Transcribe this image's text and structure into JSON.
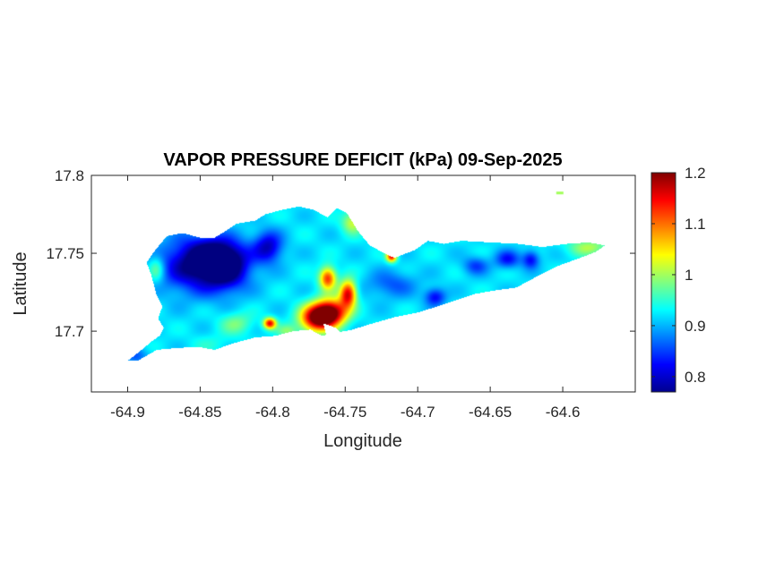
{
  "title": "VAPOR PRESSURE DEFICIT (kPa) 09-Sep-2025",
  "x_axis": {
    "label": "Longitude",
    "range": [
      -64.925,
      -64.55
    ],
    "ticks": [
      {
        "value": -64.9,
        "label": "-64.9"
      },
      {
        "value": -64.85,
        "label": "-64.85"
      },
      {
        "value": -64.8,
        "label": "-64.8"
      },
      {
        "value": -64.75,
        "label": "-64.75"
      },
      {
        "value": -64.7,
        "label": "-64.7"
      },
      {
        "value": -64.65,
        "label": "-64.65"
      },
      {
        "value": -64.6,
        "label": "-64.6"
      }
    ]
  },
  "y_axis": {
    "label": "Latitude",
    "range": [
      17.661,
      17.8
    ],
    "ticks": [
      {
        "value": 17.8,
        "label": "17.8"
      },
      {
        "value": 17.75,
        "label": "17.75"
      },
      {
        "value": 17.7,
        "label": "17.7"
      }
    ]
  },
  "colorbar": {
    "colormap": "jet",
    "range": [
      0.77,
      1.2
    ],
    "ticks": [
      {
        "value": 1.2,
        "label": "1.2"
      },
      {
        "value": 1.1,
        "label": "1.1"
      },
      {
        "value": 1.0,
        "label": "1"
      },
      {
        "value": 0.9,
        "label": "0.9"
      },
      {
        "value": 0.8,
        "label": "0.8"
      }
    ]
  },
  "chart_data": {
    "type": "heatmap",
    "value_range": [
      0.77,
      1.2
    ],
    "land_outline_lonlat": [
      [
        -64.9,
        17.681
      ],
      [
        -64.893,
        17.686
      ],
      [
        -64.884,
        17.693
      ],
      [
        -64.878,
        17.697
      ],
      [
        -64.875,
        17.702
      ],
      [
        -64.879,
        17.708
      ],
      [
        -64.876,
        17.716
      ],
      [
        -64.88,
        17.723
      ],
      [
        -64.884,
        17.737
      ],
      [
        -64.887,
        17.744
      ],
      [
        -64.881,
        17.752
      ],
      [
        -64.873,
        17.761
      ],
      [
        -64.862,
        17.763
      ],
      [
        -64.85,
        17.76
      ],
      [
        -64.84,
        17.76
      ],
      [
        -64.833,
        17.764
      ],
      [
        -64.825,
        17.769
      ],
      [
        -64.812,
        17.771
      ],
      [
        -64.805,
        17.775
      ],
      [
        -64.793,
        17.778
      ],
      [
        -64.782,
        17.78
      ],
      [
        -64.772,
        17.778
      ],
      [
        -64.762,
        17.773
      ],
      [
        -64.756,
        17.779
      ],
      [
        -64.749,
        17.776
      ],
      [
        -64.741,
        17.764
      ],
      [
        -64.733,
        17.755
      ],
      [
        -64.723,
        17.75
      ],
      [
        -64.716,
        17.747
      ],
      [
        -64.708,
        17.75
      ],
      [
        -64.702,
        17.752
      ],
      [
        -64.693,
        17.758
      ],
      [
        -64.682,
        17.756
      ],
      [
        -64.67,
        17.758
      ],
      [
        -64.65,
        17.757
      ],
      [
        -64.63,
        17.756
      ],
      [
        -64.614,
        17.754
      ],
      [
        -64.598,
        17.756
      ],
      [
        -64.582,
        17.757
      ],
      [
        -64.571,
        17.755
      ],
      [
        -64.577,
        17.751
      ],
      [
        -64.588,
        17.747
      ],
      [
        -64.603,
        17.742
      ],
      [
        -64.618,
        17.735
      ],
      [
        -64.632,
        17.728
      ],
      [
        -64.648,
        17.726
      ],
      [
        -64.66,
        17.724
      ],
      [
        -64.673,
        17.72
      ],
      [
        -64.686,
        17.716
      ],
      [
        -64.7,
        17.712
      ],
      [
        -64.716,
        17.709
      ],
      [
        -64.731,
        17.705
      ],
      [
        -64.745,
        17.701
      ],
      [
        -64.756,
        17.699
      ],
      [
        -64.766,
        17.697
      ],
      [
        -64.774,
        17.701
      ],
      [
        -64.786,
        17.7
      ],
      [
        -64.798,
        17.697
      ],
      [
        -64.812,
        17.696
      ],
      [
        -64.828,
        17.692
      ],
      [
        -64.84,
        17.688
      ],
      [
        -64.852,
        17.69
      ],
      [
        -64.868,
        17.689
      ],
      [
        -64.88,
        17.688
      ],
      [
        -64.893,
        17.681
      ]
    ],
    "hole_lonlat": [
      [
        -64.765,
        17.705
      ],
      [
        -64.756,
        17.702
      ],
      [
        -64.752,
        17.698
      ],
      [
        -64.758,
        17.694
      ],
      [
        -64.763,
        17.697
      ]
    ],
    "islet_lonlat": [
      -64.602,
      17.789
    ],
    "hotspots": [
      {
        "lon": -64.85,
        "lat": 17.742,
        "value": 0.77,
        "sx": 0.02,
        "sy": 0.012
      },
      {
        "lon": -64.838,
        "lat": 17.748,
        "value": 0.8,
        "sx": 0.013,
        "sy": 0.008
      },
      {
        "lon": -64.803,
        "lat": 17.754,
        "value": 0.8,
        "sx": 0.007,
        "sy": 0.007
      },
      {
        "lon": -64.832,
        "lat": 17.738,
        "value": 0.84,
        "sx": 0.01,
        "sy": 0.009
      },
      {
        "lon": -64.76,
        "lat": 17.712,
        "value": 1.2,
        "sx": 0.008,
        "sy": 0.006
      },
      {
        "lon": -64.77,
        "lat": 17.708,
        "value": 1.17,
        "sx": 0.008,
        "sy": 0.006
      },
      {
        "lon": -64.762,
        "lat": 17.734,
        "value": 1.13,
        "sx": 0.004,
        "sy": 0.005
      },
      {
        "lon": -64.748,
        "lat": 17.724,
        "value": 1.16,
        "sx": 0.004,
        "sy": 0.006
      },
      {
        "lon": -64.802,
        "lat": 17.705,
        "value": 1.15,
        "sx": 0.003,
        "sy": 0.0025
      },
      {
        "lon": -64.718,
        "lat": 17.748,
        "value": 1.15,
        "sx": 0.0025,
        "sy": 0.0025
      },
      {
        "lon": -64.688,
        "lat": 17.722,
        "value": 0.82,
        "sx": 0.005,
        "sy": 0.004
      },
      {
        "lon": -64.638,
        "lat": 17.746,
        "value": 0.83,
        "sx": 0.006,
        "sy": 0.004
      },
      {
        "lon": -64.622,
        "lat": 17.746,
        "value": 0.82,
        "sx": 0.004,
        "sy": 0.004
      },
      {
        "lon": -64.66,
        "lat": 17.742,
        "value": 0.85,
        "sx": 0.006,
        "sy": 0.004
      },
      {
        "lon": -64.718,
        "lat": 17.73,
        "value": 0.86,
        "sx": 0.012,
        "sy": 0.006
      },
      {
        "lon": -64.745,
        "lat": 17.77,
        "value": 1.02,
        "sx": 0.005,
        "sy": 0.005
      },
      {
        "lon": -64.582,
        "lat": 17.754,
        "value": 1.0,
        "sx": 0.01,
        "sy": 0.004
      },
      {
        "lon": -64.88,
        "lat": 17.74,
        "value": 1.0,
        "sx": 0.004,
        "sy": 0.006
      },
      {
        "lon": -64.825,
        "lat": 17.705,
        "value": 0.98,
        "sx": 0.008,
        "sy": 0.005
      },
      {
        "lon": -64.842,
        "lat": 17.692,
        "value": 0.94,
        "sx": 0.01,
        "sy": 0.004
      },
      {
        "lon": -64.895,
        "lat": 17.684,
        "value": 0.86,
        "sx": 0.006,
        "sy": 0.004
      },
      {
        "lon": -64.79,
        "lat": 17.7,
        "value": 0.98,
        "sx": 0.005,
        "sy": 0.003
      }
    ],
    "background_value": 0.92
  }
}
